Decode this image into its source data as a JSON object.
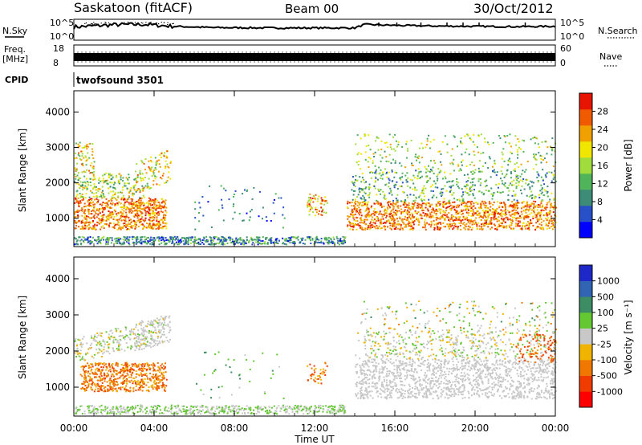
{
  "header": {
    "station": "Saskatoon (fitACF)",
    "beam": "Beam 00",
    "date": "30/Oct/2012"
  },
  "side_labels": {
    "nsky": "N.Sky",
    "freq": "Freq.",
    "freq_unit": "[MHz]",
    "cpid": "CPID",
    "nsearch": "N.Search",
    "nave": "Nave"
  },
  "cpid_name": "twofsound 3501",
  "colors": {
    "power": [
      "#0000ff",
      "#2850c8",
      "#3c8c78",
      "#50b45a",
      "#a0dc3c",
      "#f0e600",
      "#f0a000",
      "#f05a00",
      "#e61400"
    ],
    "velocity": [
      "#ff0000",
      "#f03c00",
      "#f07800",
      "#f0b400",
      "#c8c8c8",
      "#64c832",
      "#3c8c64",
      "#3264b4",
      "#1e28c8"
    ]
  },
  "chart_data": [
    {
      "type": "line",
      "name": "nsky-nsearch-strip",
      "ylabel_left": "N.Sky",
      "ylabel_right": "N.Search",
      "left_ticks": [
        "10^5",
        "10^0"
      ],
      "right_ticks": [
        "10^5",
        "10^0"
      ],
      "x": [
        0,
        2,
        3.5,
        5,
        7,
        10,
        14,
        14.5,
        16,
        18,
        20,
        22,
        24
      ],
      "values": [
        3.6,
        4.3,
        4.4,
        3.8,
        3.4,
        3.3,
        3.3,
        4.4,
        4.1,
        3.9,
        3.8,
        3.7,
        3.8
      ]
    },
    {
      "type": "line",
      "name": "frequency-nave-strip",
      "left_ticks": [
        "18",
        "8"
      ],
      "right_ticks": [
        "60",
        "0"
      ],
      "ylim_left": [
        8,
        18
      ],
      "ylim_right": [
        0,
        60
      ],
      "x": [
        0,
        24
      ],
      "values": [
        10.5,
        10.5
      ]
    },
    {
      "type": "heatmap",
      "name": "power-panel",
      "ylabel": "Slant Range [km]",
      "yticks": [
        "4000",
        "3000",
        "2000",
        "1000"
      ],
      "ylim": [
        200,
        4600
      ],
      "colorbar_label": "Power [dB]",
      "colorbar_ticks": [
        "28",
        "24",
        "20",
        "16",
        "12",
        "8",
        "4"
      ],
      "colorbar_range": [
        0,
        32
      ]
    },
    {
      "type": "heatmap",
      "name": "velocity-panel",
      "ylabel": "Slant Range [km]",
      "yticks": [
        "4000",
        "3000",
        "2000",
        "1000"
      ],
      "ylim": [
        200,
        4600
      ],
      "colorbar_label": "Velocity [m s⁻¹]",
      "colorbar_ticks": [
        "1000",
        "500",
        "100",
        "25",
        "-25",
        "-100",
        "-500",
        "-1000"
      ]
    }
  ],
  "xaxis": {
    "xlabel": "Time UT",
    "ticks": [
      "00:00",
      "04:00",
      "08:00",
      "12:00",
      "16:00",
      "20:00",
      "00:00"
    ],
    "xlim": [
      0,
      24
    ]
  }
}
